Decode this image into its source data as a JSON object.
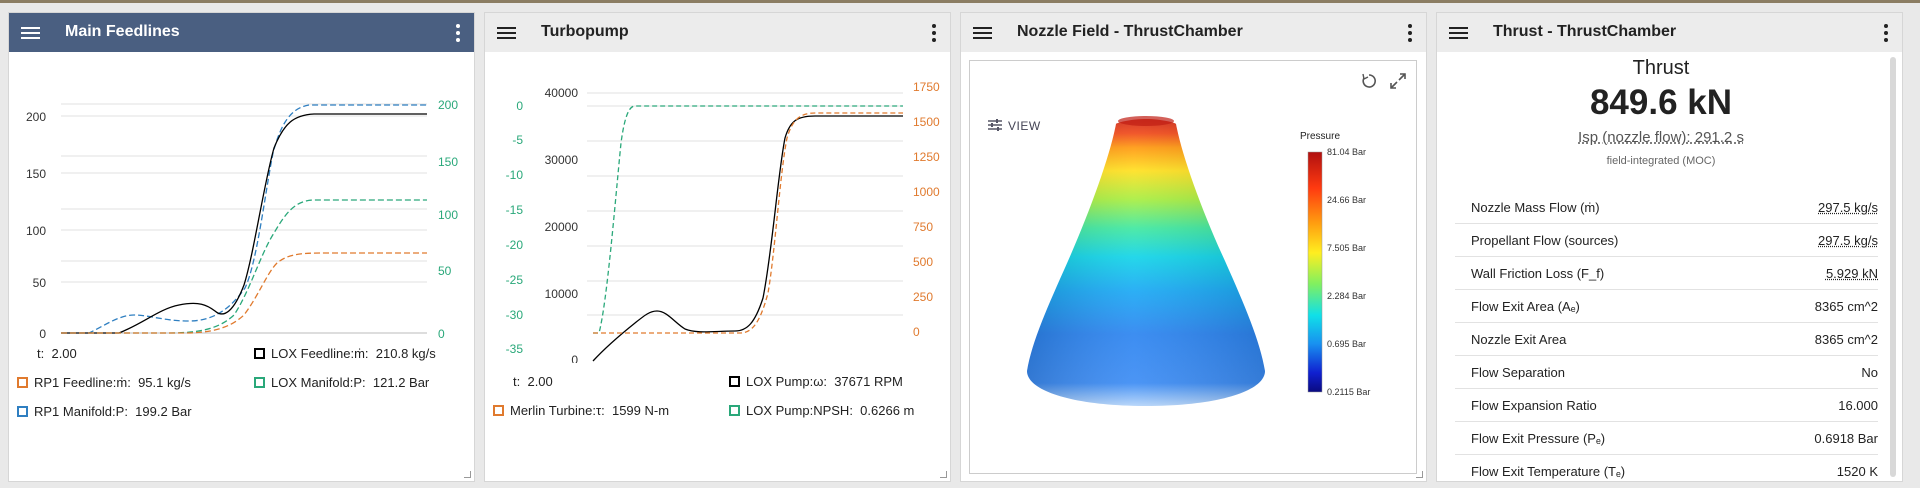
{
  "panels": {
    "feedlines": {
      "title": "Main Feedlines",
      "left_axis_ticks": [
        "200",
        "150",
        "100",
        "50",
        "0"
      ],
      "right_axis_ticks": [
        "200",
        "150",
        "100",
        "50",
        "0"
      ],
      "time": {
        "label": "t:",
        "value": "2.00"
      },
      "legend": [
        {
          "label": "LOX Feedline:ṁ:",
          "value": "210.8 kg/s",
          "color": "#000000"
        },
        {
          "label": "RP1 Feedline:ṁ:",
          "value": "95.1 kg/s",
          "color": "#e07a2e"
        },
        {
          "label": "LOX Manifold:P:",
          "value": "121.2 Bar",
          "color": "#2aa87a"
        },
        {
          "label": "RP1 Manifold:P:",
          "value": "199.2 Bar",
          "color": "#2f7fc1"
        }
      ]
    },
    "turbopump": {
      "title": "Turbopump",
      "left_outer_ticks": [
        "0",
        "-5",
        "-10",
        "-15",
        "-20",
        "-25",
        "-30",
        "-35"
      ],
      "left_inner_ticks": [
        "40000",
        "30000",
        "20000",
        "10000",
        "0"
      ],
      "right_axis_ticks": [
        "1750",
        "1500",
        "1250",
        "1000",
        "750",
        "500",
        "250",
        "0"
      ],
      "time": {
        "label": "t:",
        "value": "2.00"
      },
      "legend": [
        {
          "label": "LOX Pump:ω:",
          "value": "37671 RPM",
          "color": "#000000"
        },
        {
          "label": "Merlin Turbine:τ:",
          "value": "1599 N-m",
          "color": "#e07a2e"
        },
        {
          "label": "LOX Pump:NPSH:",
          "value": "0.6266 m",
          "color": "#2aa87a"
        }
      ]
    },
    "nozzle_field": {
      "title": "Nozzle Field - ThrustChamber",
      "view_label": "VIEW",
      "colorbar": {
        "title": "Pressure",
        "ticks": [
          "81.04 Bar",
          "24.66 Bar",
          "7.505 Bar",
          "2.284 Bar",
          "0.695 Bar",
          "0.2115 Bar"
        ]
      }
    },
    "thrust": {
      "title": "Thrust - ThrustChamber",
      "heading": "Thrust",
      "value": "849.6 kN",
      "isp": "Isp (nozzle flow): 291.2 s",
      "note": "field-integrated (MOC)",
      "rows": [
        {
          "label": "Nozzle Mass Flow (ṁ)",
          "value": "297.5 kg/s"
        },
        {
          "label": "Propellant Flow (sources)",
          "value": "297.5 kg/s"
        },
        {
          "label": "Wall Friction Loss (F_f)",
          "value": "5.929 kN"
        },
        {
          "label": "Flow Exit Area (Aₑ)",
          "value": "8365 cm^2"
        },
        {
          "label": "Nozzle Exit Area",
          "value": "8365 cm^2"
        },
        {
          "label": "Flow Separation",
          "value": "No"
        },
        {
          "label": "Flow Expansion Ratio",
          "value": "16.000"
        },
        {
          "label": "Flow Exit Pressure (Pₑ)",
          "value": "0.6918 Bar"
        },
        {
          "label": "Flow Exit Temperature (Tₑ)",
          "value": "1520 K"
        }
      ]
    }
  },
  "colors": {
    "header_active": "#4a5f81",
    "header": "#ececec",
    "lox": "#000000",
    "rp1": "#e07a2e",
    "manifold_lox": "#2aa87a",
    "manifold_rp1": "#2f7fc1"
  }
}
